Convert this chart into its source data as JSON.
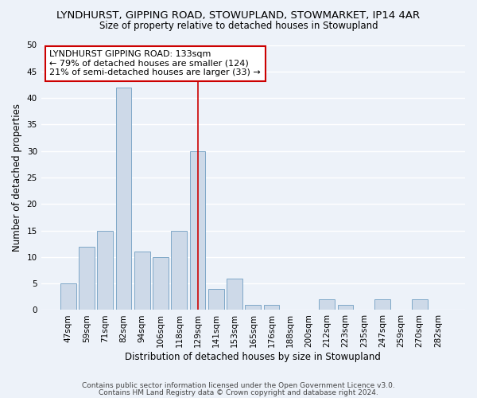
{
  "title": "LYNDHURST, GIPPING ROAD, STOWUPLAND, STOWMARKET, IP14 4AR",
  "subtitle": "Size of property relative to detached houses in Stowupland",
  "xlabel": "Distribution of detached houses by size in Stowupland",
  "ylabel": "Number of detached properties",
  "bar_labels": [
    "47sqm",
    "59sqm",
    "71sqm",
    "82sqm",
    "94sqm",
    "106sqm",
    "118sqm",
    "129sqm",
    "141sqm",
    "153sqm",
    "165sqm",
    "176sqm",
    "188sqm",
    "200sqm",
    "212sqm",
    "223sqm",
    "235sqm",
    "247sqm",
    "259sqm",
    "270sqm",
    "282sqm"
  ],
  "bar_values": [
    5,
    12,
    15,
    42,
    11,
    10,
    15,
    30,
    4,
    6,
    1,
    1,
    0,
    0,
    2,
    1,
    0,
    2,
    0,
    2,
    0
  ],
  "bar_color": "#cdd9e8",
  "bar_edgecolor": "#7fa8c8",
  "vline_index": 7,
  "vline_color": "#cc0000",
  "annotation_line1": "LYNDHURST GIPPING ROAD: 133sqm",
  "annotation_line2": "← 79% of detached houses are smaller (124)",
  "annotation_line3": "21% of semi-detached houses are larger (33) →",
  "annotation_box_facecolor": "#ffffff",
  "annotation_box_edgecolor": "#cc0000",
  "ylim": [
    0,
    50
  ],
  "yticks": [
    0,
    5,
    10,
    15,
    20,
    25,
    30,
    35,
    40,
    45,
    50
  ],
  "footer_line1": "Contains HM Land Registry data © Crown copyright and database right 2024.",
  "footer_line2": "Contains public sector information licensed under the Open Government Licence v3.0.",
  "bg_color": "#edf2f9",
  "plot_bg_color": "#edf2f9",
  "grid_color": "#ffffff",
  "title_fontsize": 9.5,
  "subtitle_fontsize": 8.5,
  "axis_label_fontsize": 8.5,
  "tick_fontsize": 7.5,
  "annotation_fontsize": 8,
  "footer_fontsize": 6.5
}
